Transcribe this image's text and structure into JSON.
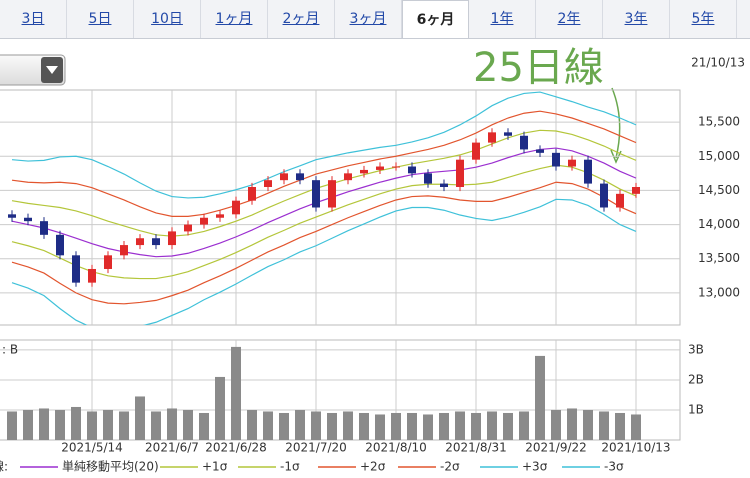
{
  "tabs": [
    "3日",
    "5日",
    "10日",
    "1ヶ月",
    "2ヶ月",
    "3ヶ月",
    "6ヶ月",
    "1年",
    "2年",
    "3年",
    "5年"
  ],
  "selected_tab": 6,
  "annotation": "25日線",
  "date": "21/10/13",
  "chart_data": [
    {
      "type": "candlestick",
      "categories": [
        null,
        null,
        null,
        null,
        null,
        "2021/5/14",
        null,
        null,
        null,
        null,
        "2021/6/7",
        null,
        null,
        null,
        "2021/6/28",
        null,
        null,
        null,
        null,
        "2021/7/20",
        null,
        null,
        null,
        null,
        "2021/8/10",
        null,
        null,
        null,
        null,
        "2021/8/31",
        null,
        null,
        null,
        null,
        "2021/9/22",
        null,
        null,
        null,
        null,
        "2021/10/13"
      ],
      "open": [
        14150,
        14100,
        14050,
        13850,
        13550,
        13150,
        13350,
        13550,
        13700,
        13800,
        13700,
        13900,
        14000,
        14100,
        14150,
        14350,
        14550,
        14650,
        14750,
        14650,
        14250,
        14650,
        14750,
        14800,
        14850,
        14850,
        14750,
        14600,
        14550,
        14950,
        15200,
        15350,
        15300,
        15100,
        15050,
        14850,
        14950,
        14600,
        14250,
        14450
      ],
      "high": [
        14210,
        14160,
        14110,
        13910,
        13610,
        13410,
        13610,
        13760,
        13860,
        13860,
        13960,
        14060,
        14160,
        14210,
        14410,
        14610,
        14710,
        14810,
        14810,
        14710,
        14710,
        14810,
        14860,
        14910,
        14910,
        14910,
        14810,
        14660,
        15010,
        15260,
        15410,
        15410,
        15360,
        15160,
        15110,
        15010,
        15010,
        14660,
        14510,
        14610
      ],
      "low": [
        14040,
        13990,
        13790,
        13490,
        13090,
        13090,
        13290,
        13490,
        13640,
        13640,
        13640,
        13840,
        13940,
        14040,
        14090,
        14290,
        14490,
        14590,
        14590,
        14190,
        14190,
        14590,
        14690,
        14740,
        14790,
        14690,
        14540,
        14490,
        14490,
        14890,
        15140,
        15240,
        15040,
        14990,
        14790,
        14790,
        14540,
        14190,
        14190,
        14390
      ],
      "close": [
        14100,
        14050,
        13850,
        13550,
        13150,
        13350,
        13550,
        13700,
        13800,
        13700,
        13900,
        14000,
        14100,
        14150,
        14350,
        14550,
        14650,
        14750,
        14650,
        14250,
        14650,
        14750,
        14800,
        14850,
        14850,
        14750,
        14600,
        14550,
        14950,
        15200,
        15350,
        15300,
        15100,
        15050,
        14850,
        14950,
        14600,
        14250,
        14450,
        14550
      ],
      "up_color": "#e02a2a",
      "down_color": "#1e2c86",
      "legend_title": "線:",
      "series": [
        {
          "name": "単純移動平均(20)",
          "color": "#9b2fd0",
          "values": [
            14050,
            14000,
            13950,
            13880,
            13800,
            13720,
            13650,
            13600,
            13560,
            13530,
            13540,
            13580,
            13650,
            13730,
            13820,
            13920,
            14030,
            14130,
            14230,
            14320,
            14400,
            14480,
            14550,
            14620,
            14680,
            14730,
            14760,
            14780,
            14800,
            14840,
            14900,
            14980,
            15050,
            15100,
            15120,
            15080,
            15000,
            14900,
            14780,
            14680
          ]
        },
        {
          "name": "+1σ",
          "color": "#b4c63a",
          "values": [
            14350,
            14310,
            14280,
            14250,
            14200,
            14130,
            14050,
            13980,
            13910,
            13850,
            13830,
            13850,
            13900,
            13970,
            14050,
            14140,
            14245,
            14345,
            14440,
            14530,
            14600,
            14670,
            14730,
            14790,
            14840,
            14890,
            14930,
            14970,
            15020,
            15090,
            15180,
            15270,
            15340,
            15380,
            15370,
            15320,
            15240,
            15150,
            15040,
            14940
          ]
        },
        {
          "name": "-1σ",
          "color": "#b4c63a",
          "values": [
            13750,
            13690,
            13620,
            13510,
            13400,
            13310,
            13250,
            13220,
            13210,
            13210,
            13250,
            13310,
            13400,
            13490,
            13590,
            13700,
            13815,
            13915,
            14020,
            14110,
            14200,
            14290,
            14370,
            14450,
            14520,
            14570,
            14590,
            14590,
            14580,
            14590,
            14620,
            14690,
            14760,
            14820,
            14870,
            14840,
            14760,
            14650,
            14520,
            14420
          ]
        },
        {
          "name": "+2σ",
          "color": "#e2552e",
          "values": [
            14650,
            14620,
            14610,
            14620,
            14600,
            14540,
            14450,
            14360,
            14260,
            14170,
            14120,
            14120,
            14150,
            14210,
            14280,
            14360,
            14460,
            14560,
            14650,
            14740,
            14800,
            14860,
            14910,
            14960,
            15000,
            15050,
            15100,
            15160,
            15240,
            15340,
            15460,
            15560,
            15630,
            15660,
            15620,
            15560,
            15480,
            15400,
            15300,
            15200
          ]
        },
        {
          "name": "-2σ",
          "color": "#e2552e",
          "values": [
            13450,
            13380,
            13290,
            13140,
            13000,
            12900,
            12850,
            12840,
            12860,
            12890,
            12960,
            13040,
            13150,
            13250,
            13360,
            13480,
            13600,
            13700,
            13810,
            13900,
            14000,
            14100,
            14190,
            14280,
            14360,
            14410,
            14420,
            14400,
            14360,
            14340,
            14340,
            14400,
            14470,
            14540,
            14620,
            14600,
            14520,
            14400,
            14260,
            14160
          ]
        },
        {
          "name": "+3σ",
          "color": "#3fc1d9",
          "values": [
            14950,
            14930,
            14940,
            14990,
            15000,
            14950,
            14850,
            14740,
            14610,
            14490,
            14410,
            14390,
            14400,
            14450,
            14510,
            14580,
            14675,
            14775,
            14860,
            14950,
            15000,
            15050,
            15090,
            15130,
            15160,
            15210,
            15270,
            15350,
            15460,
            15590,
            15740,
            15850,
            15920,
            15940,
            15870,
            15800,
            15720,
            15650,
            15560,
            15460
          ]
        },
        {
          "name": "-3σ",
          "color": "#3fc1d9",
          "values": [
            13150,
            13070,
            12960,
            12770,
            12600,
            12490,
            12450,
            12460,
            12510,
            12570,
            12670,
            12770,
            12900,
            13010,
            13130,
            13260,
            13385,
            13485,
            13600,
            13690,
            13800,
            13910,
            14010,
            14110,
            14200,
            14250,
            14250,
            14210,
            14140,
            14090,
            14060,
            14110,
            14180,
            14260,
            14370,
            14360,
            14280,
            14150,
            14000,
            13900
          ]
        }
      ],
      "ylim": [
        12530,
        15970
      ],
      "yticks": [
        {
          "value": 13000,
          "label": "13,000"
        },
        {
          "value": 13500,
          "label": "13,500"
        },
        {
          "value": 14000,
          "label": "14,000"
        },
        {
          "value": 14500,
          "label": "14,500"
        },
        {
          "value": 15000,
          "label": "15,000"
        },
        {
          "value": 15500,
          "label": "15,500"
        }
      ],
      "grid": true
    },
    {
      "type": "bar",
      "ylabel": ": B",
      "color": "#8a8a8a",
      "values": [
        0.95,
        1.0,
        1.05,
        1.0,
        1.1,
        0.95,
        1.0,
        0.95,
        1.45,
        0.95,
        1.05,
        1.0,
        0.9,
        2.1,
        3.1,
        1.0,
        0.95,
        0.9,
        1.0,
        0.95,
        0.9,
        0.95,
        0.9,
        0.85,
        0.9,
        0.9,
        0.85,
        0.9,
        0.95,
        0.9,
        0.95,
        0.9,
        0.95,
        2.8,
        1.0,
        1.05,
        1.0,
        0.95,
        0.9,
        0.85
      ],
      "ylim": [
        0,
        3.33
      ],
      "yticks": [
        {
          "value": 1,
          "label": "1B"
        },
        {
          "value": 2,
          "label": "2B"
        },
        {
          "value": 3,
          "label": "3B"
        }
      ],
      "grid": true
    }
  ]
}
